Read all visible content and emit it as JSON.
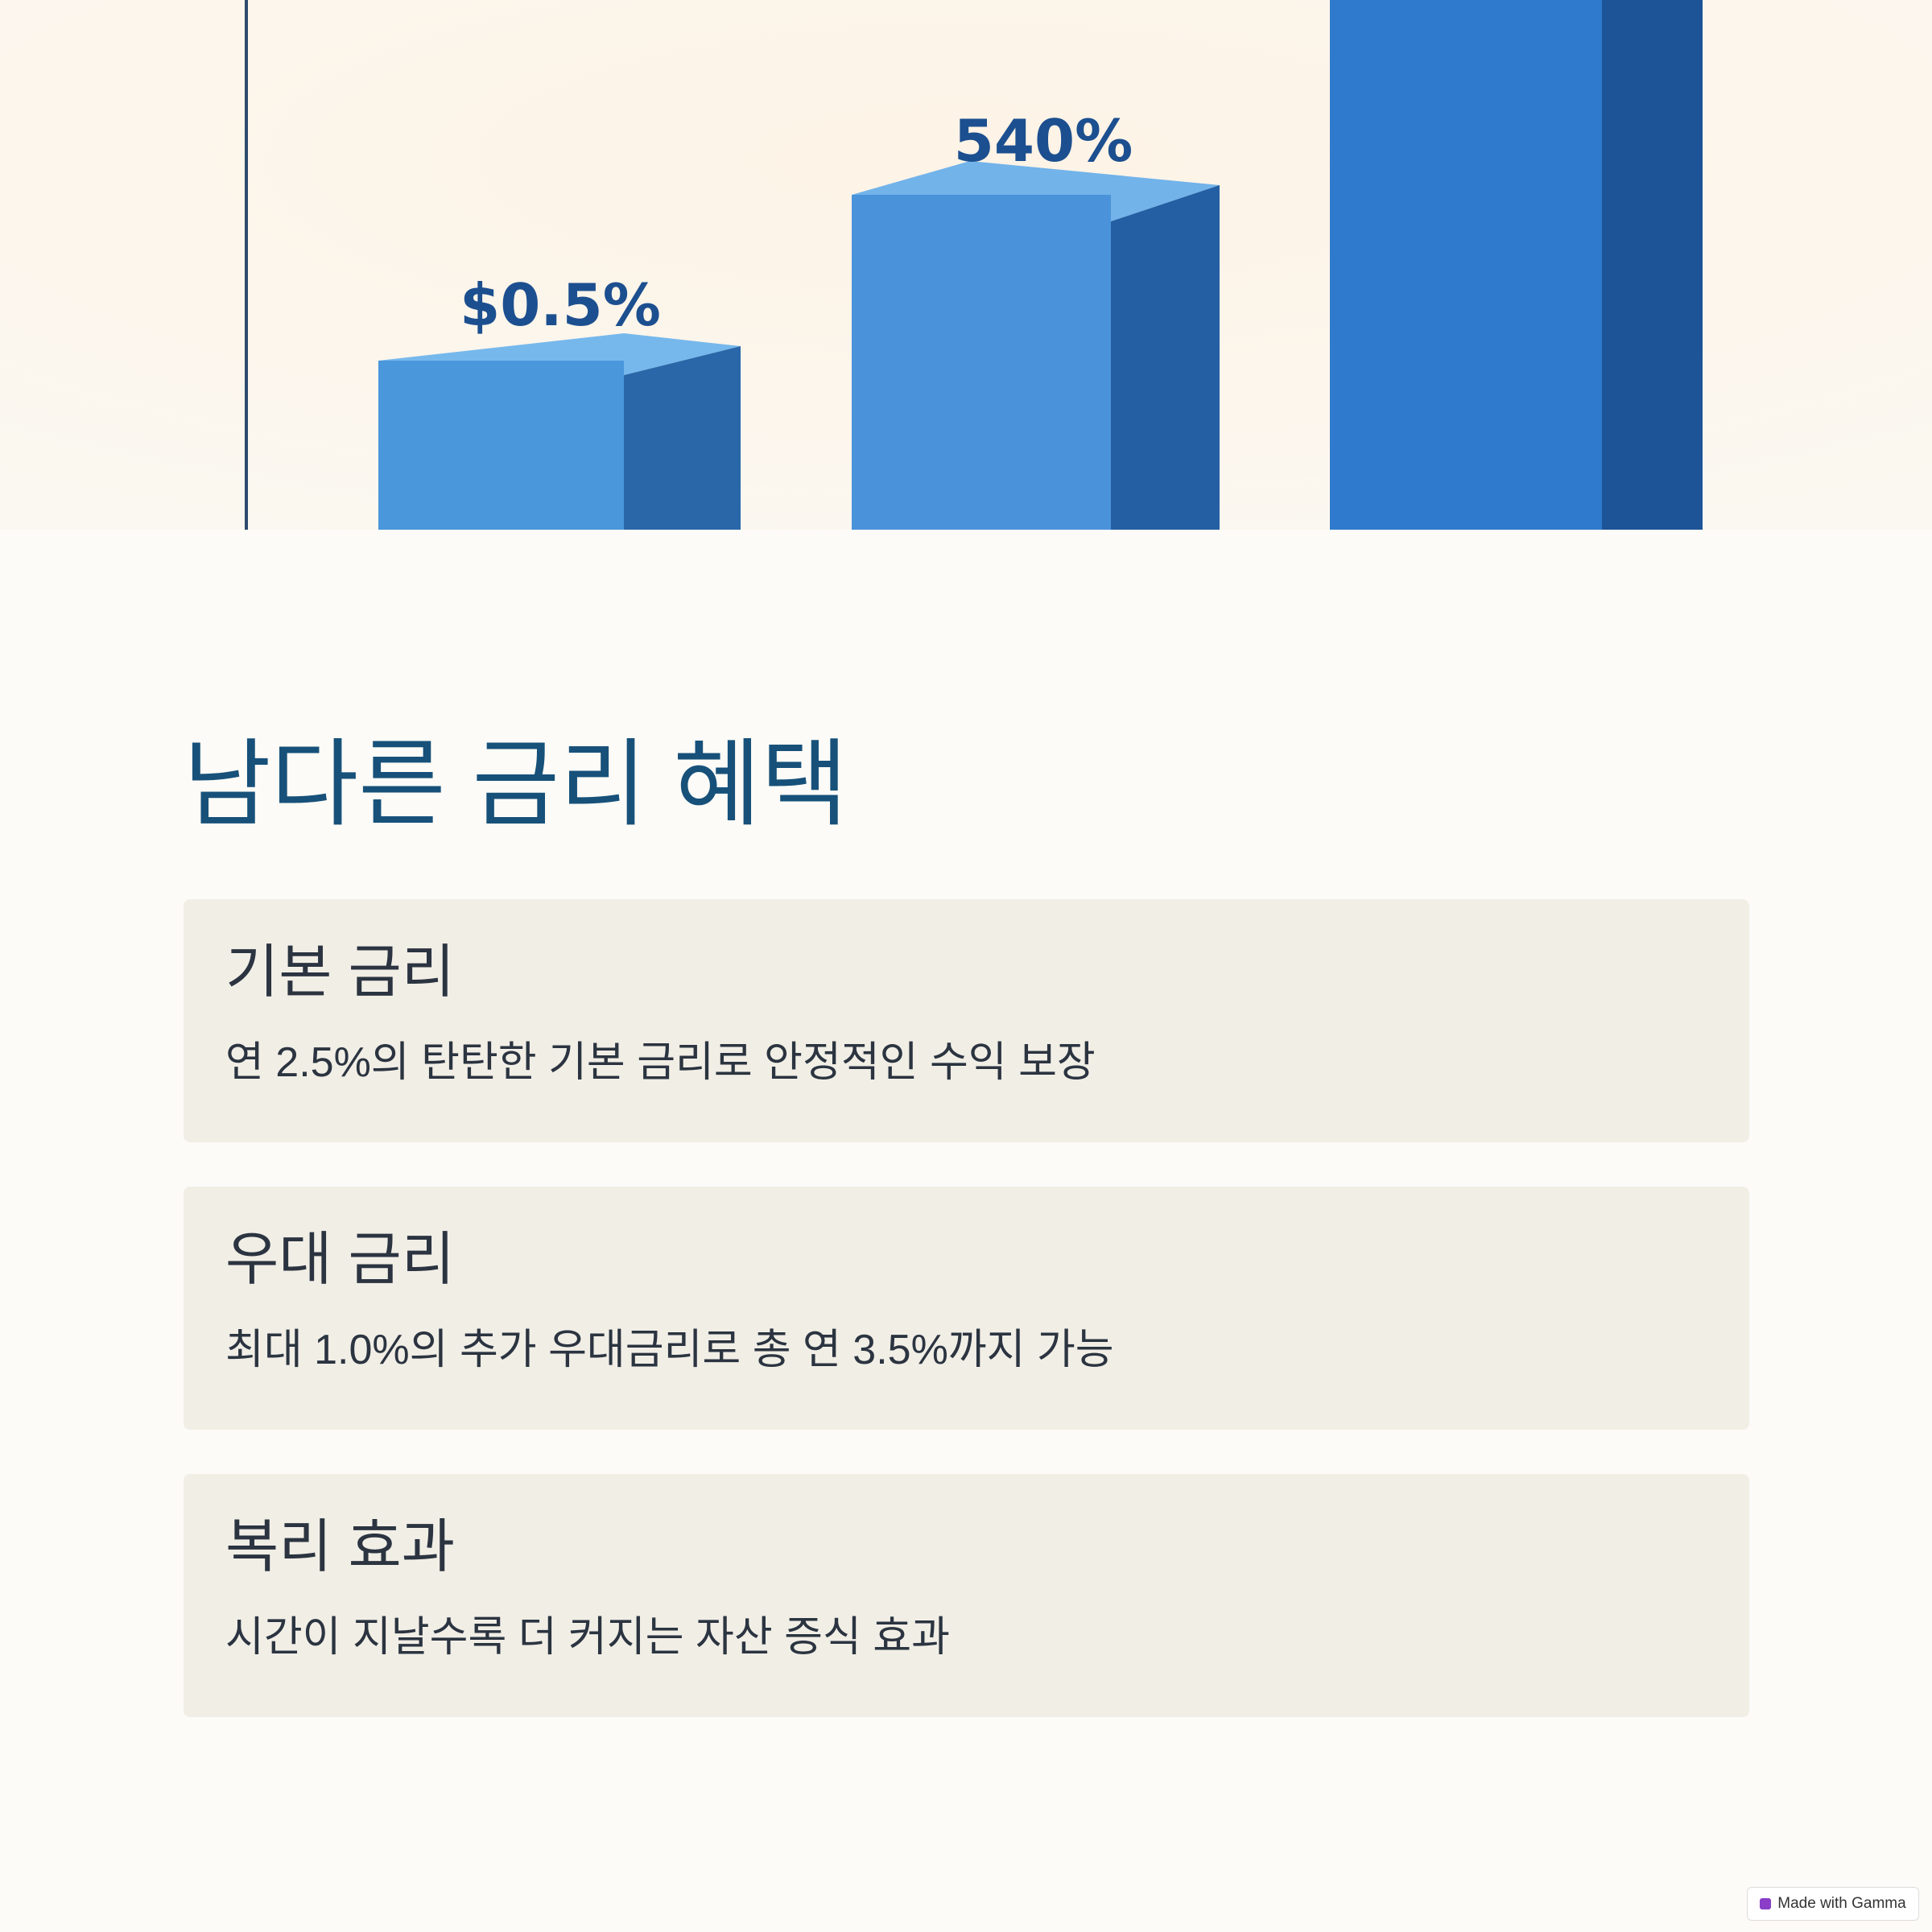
{
  "hero_image": {
    "labels": [
      "$0.5%",
      "540%"
    ]
  },
  "heading": "남다른 금리 혜택",
  "cards": [
    {
      "title": "기본 금리",
      "text": "연 2.5%의 탄탄한 기본 금리로 안정적인 수익 보장"
    },
    {
      "title": "우대 금리",
      "text": "최대 1.0%의 추가 우대금리로 총 연 3.5%까지 가능"
    },
    {
      "title": "복리 효과",
      "text": "시간이 지날수록 더 커지는 자산 증식 효과"
    }
  ],
  "badge": "Made with Gamma"
}
